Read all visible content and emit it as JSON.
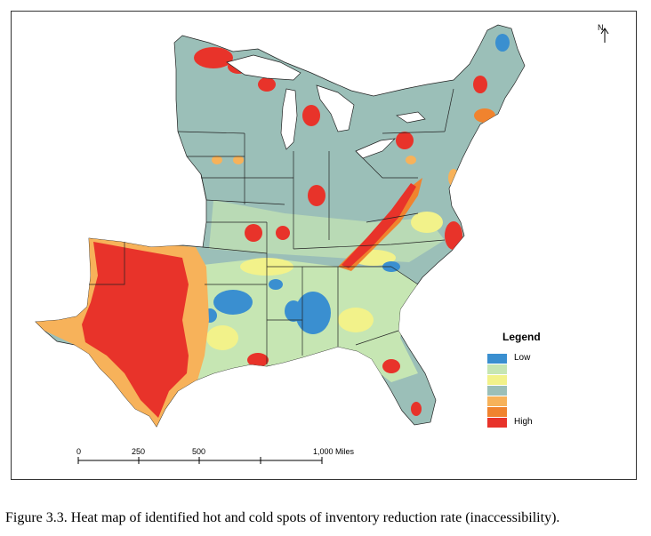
{
  "map": {
    "legend": {
      "title": "Legend",
      "classes": [
        {
          "label": "Low",
          "color": "#3a8fd0"
        },
        {
          "label": "",
          "color": "#c6e6b3"
        },
        {
          "label": "",
          "color": "#f2f28a"
        },
        {
          "label": "",
          "color": "#9bbfb8"
        },
        {
          "label": "",
          "color": "#f7b25a"
        },
        {
          "label": "",
          "color": "#f0832e"
        },
        {
          "label": "High",
          "color": "#e8332a"
        }
      ]
    },
    "scale_bar": {
      "labels": [
        "0",
        "250",
        "500",
        "1,000 Miles"
      ]
    },
    "north_arrow": {
      "label": "N",
      "icon": "north-arrow-icon"
    }
  },
  "caption": "Figure 3.3. Heat map of identified hot and cold spots of inventory reduction rate (inaccessibility)."
}
